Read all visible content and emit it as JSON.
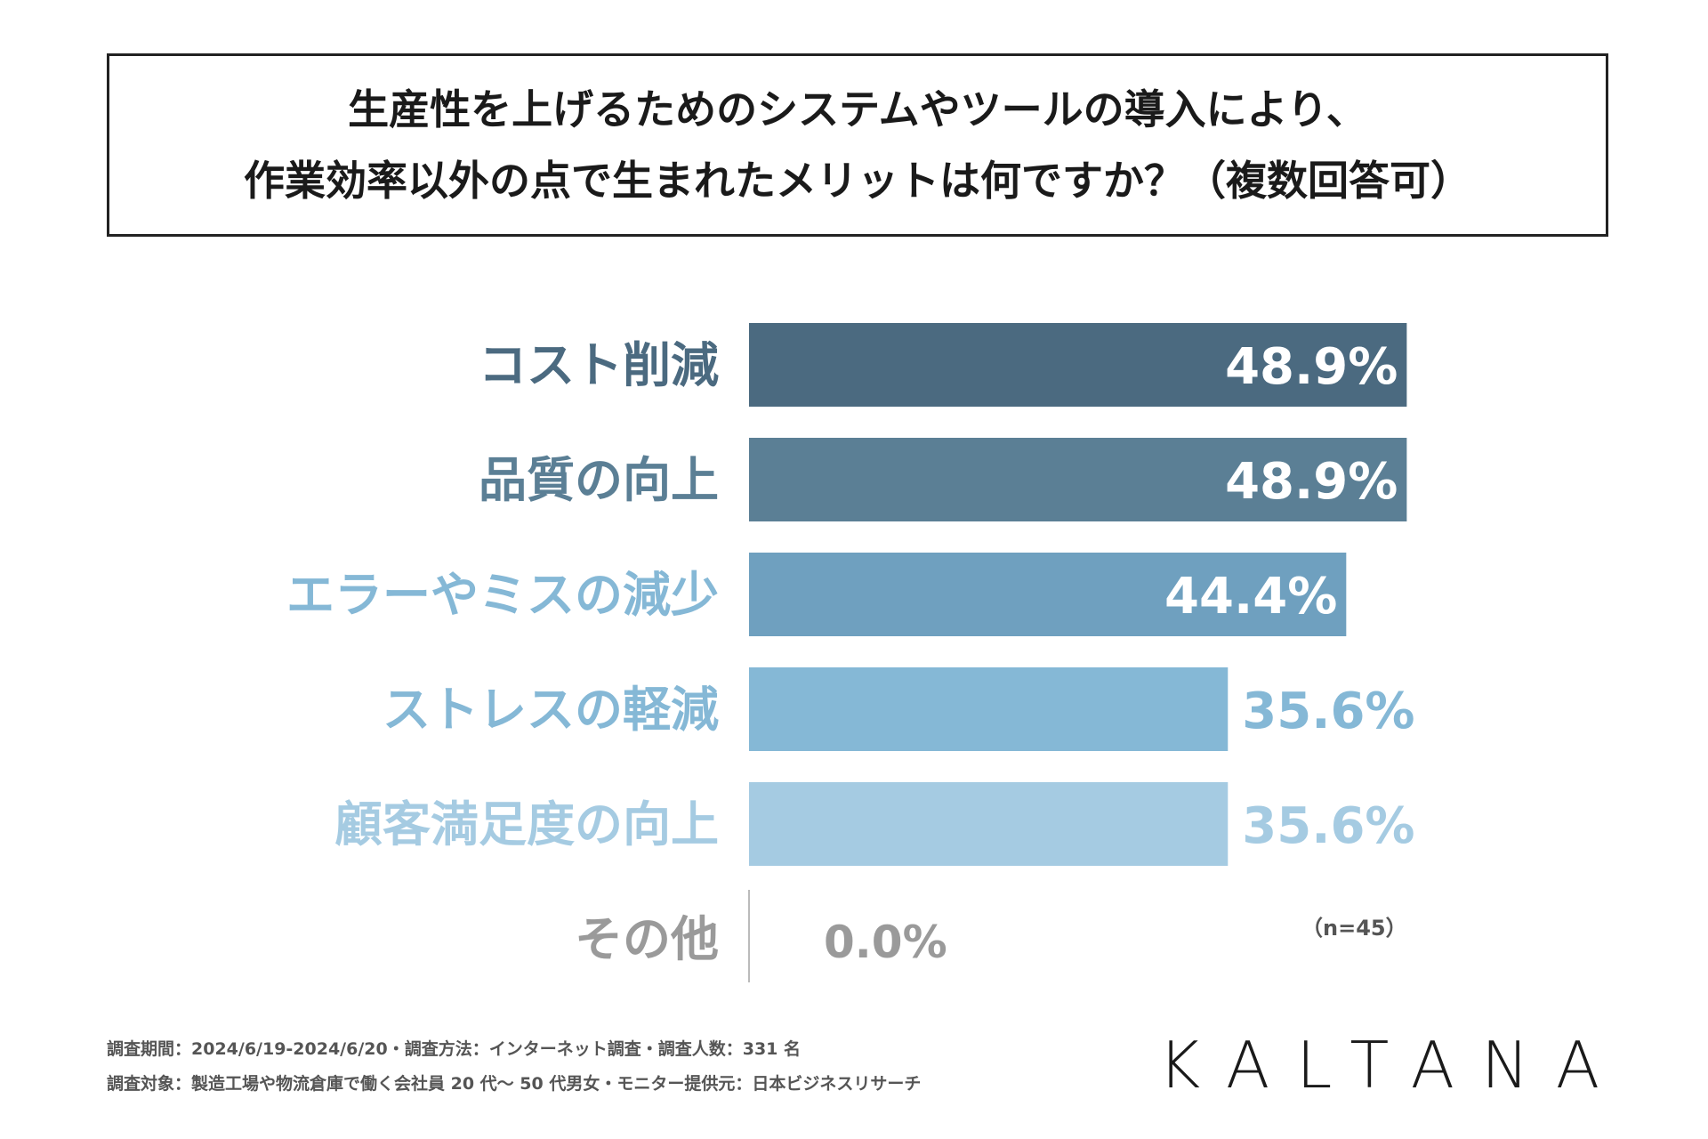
{
  "title": {
    "line1": "生産性を上げるためのシステムやツールの導入により、",
    "line2": "作業効率以外の点で生まれたメリットは何ですか？（複数回答可）"
  },
  "chart_data": {
    "type": "bar",
    "orientation": "horizontal",
    "categories": [
      "コスト削減",
      "品質の向上",
      "エラーやミスの減少",
      "ストレスの軽減",
      "顧客満足度の向上",
      "その他"
    ],
    "values": [
      48.9,
      48.9,
      44.4,
      35.6,
      35.6,
      0.0
    ],
    "value_labels": [
      "48.9%",
      "48.9%",
      "44.4%",
      "35.6%",
      "35.6%",
      "0.0%"
    ],
    "unit": "%",
    "xlim": [
      0,
      50
    ],
    "colors": [
      "#4b6a80",
      "#5b7f95",
      "#6fa0bf",
      "#85b8d6",
      "#a5cbe2",
      "#9a9a9a"
    ],
    "label_colors": [
      "#4b6a80",
      "#5b7f95",
      "#85b8d6",
      "#85b8d6",
      "#a5cbe2",
      "#9a9a9a"
    ],
    "sample_note": "（n=45）"
  },
  "footer": {
    "line1": "調査期間：2024/6/19-2024/6/20・調査方法：インターネット調査・調査人数：331 名",
    "line2": "調査対象：製造工場や物流倉庫で働く会社員 20 代〜 50 代男女・モニター提供元：日本ビジネスリサーチ",
    "brand": "KALTANA"
  }
}
